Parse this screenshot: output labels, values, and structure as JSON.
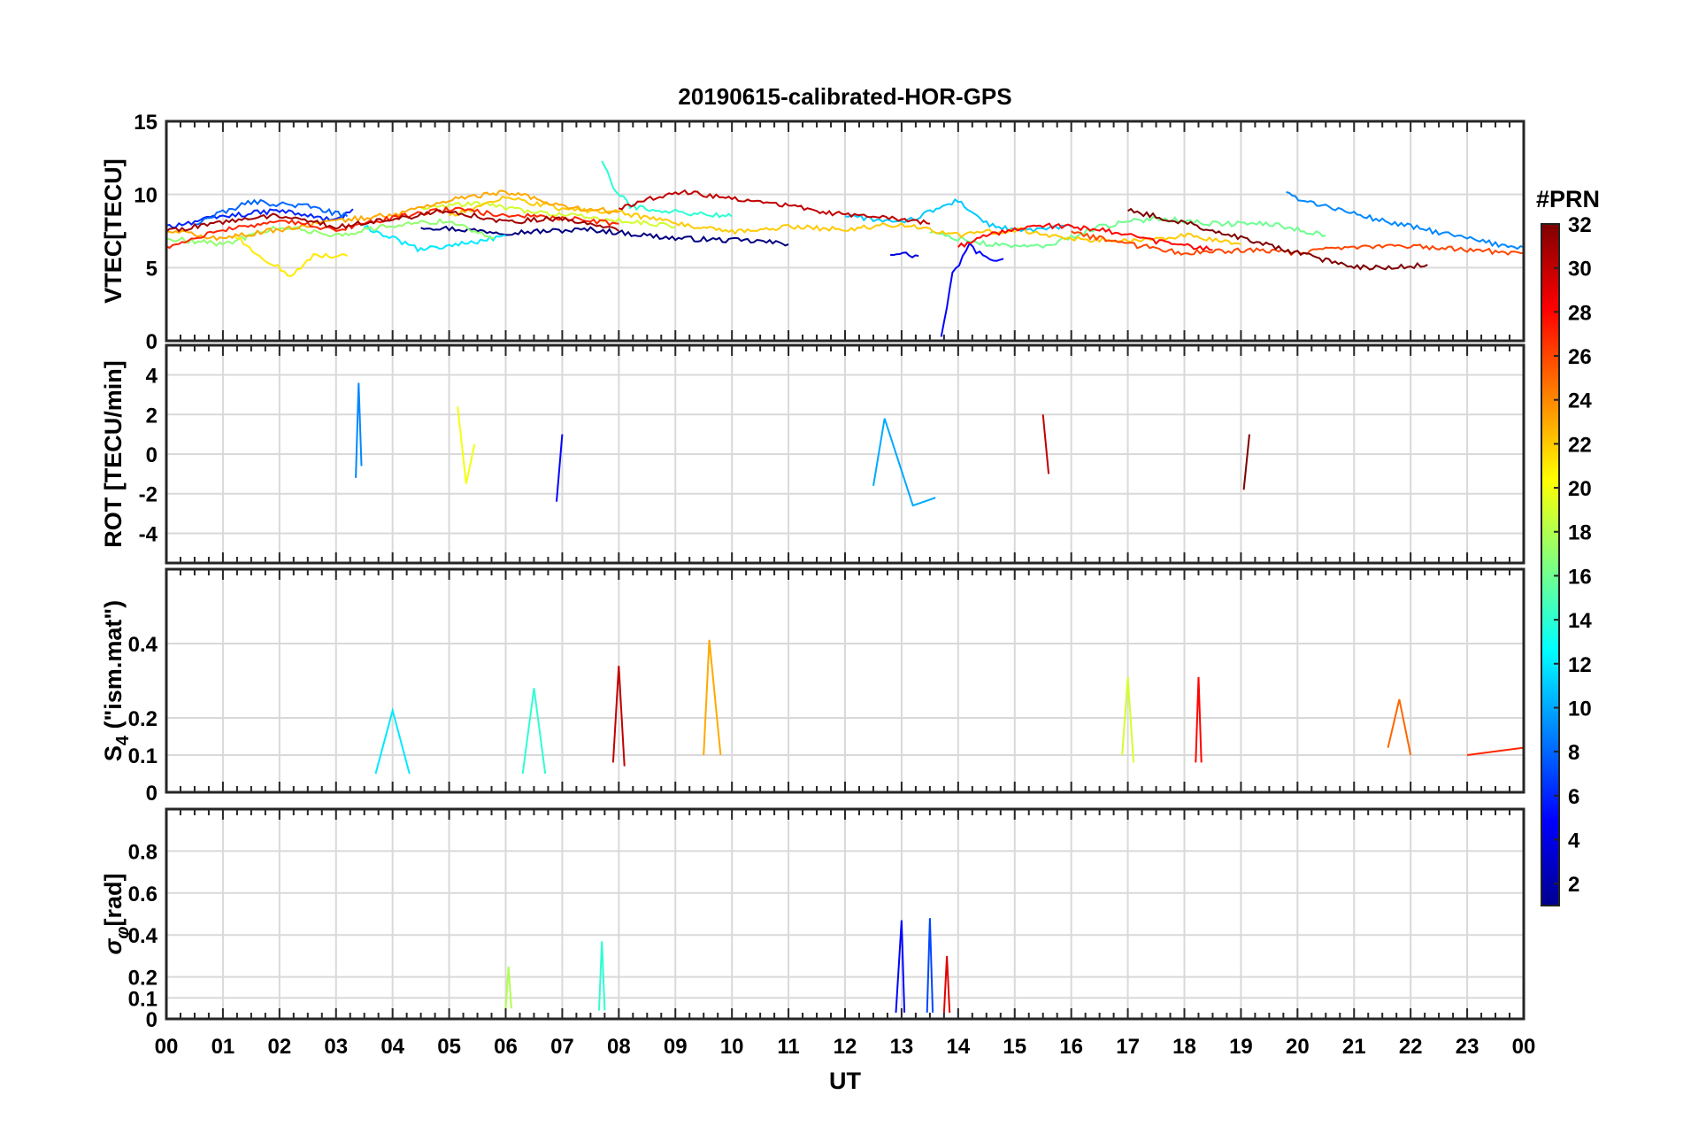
{
  "chart_data": {
    "type": "line",
    "title": "20190615-calibrated-HOR-GPS",
    "xlabel": "UT",
    "x_ticks": [
      "00",
      "01",
      "02",
      "03",
      "04",
      "05",
      "06",
      "07",
      "08",
      "09",
      "10",
      "11",
      "12",
      "13",
      "14",
      "15",
      "16",
      "17",
      "18",
      "19",
      "20",
      "21",
      "22",
      "23",
      "00"
    ],
    "xlim": [
      0,
      24
    ],
    "colorbar": {
      "label": "#PRN",
      "range": [
        1,
        32
      ],
      "ticks": [
        "2",
        "4",
        "6",
        "8",
        "10",
        "12",
        "14",
        "16",
        "18",
        "20",
        "22",
        "24",
        "26",
        "28",
        "30",
        "32"
      ]
    },
    "panels": [
      {
        "name": "vtec",
        "ylabel": "VTEC[TECU]",
        "ylim": [
          0,
          15
        ],
        "yticks": [
          "0",
          "5",
          "10",
          "15"
        ],
        "series": [
          {
            "prn": 1,
            "points": [
              [
                4.5,
                7.8
              ],
              [
                6,
                7.4
              ],
              [
                7.5,
                7.6
              ],
              [
                9,
                7.0
              ],
              [
                10.5,
                6.8
              ],
              [
                11,
                6.6
              ]
            ]
          },
          {
            "prn": 4,
            "points": [
              [
                12.8,
                6.0
              ],
              [
                13.3,
                5.8
              ]
            ]
          },
          {
            "prn": 5,
            "points": [
              [
                13.7,
                0.2
              ],
              [
                13.9,
                4.5
              ],
              [
                14.2,
                6.5
              ],
              [
                14.5,
                5.6
              ],
              [
                14.8,
                5.6
              ]
            ]
          },
          {
            "prn": 6,
            "points": [
              [
                0,
                7.8
              ],
              [
                1,
                8.5
              ],
              [
                2,
                8.9
              ],
              [
                3,
                8.2
              ],
              [
                3.3,
                9.0
              ]
            ]
          },
          {
            "prn": 8,
            "points": [
              [
                0.5,
                8.0
              ],
              [
                1.5,
                9.5
              ],
              [
                2.5,
                9.2
              ],
              [
                3.2,
                8.5
              ]
            ]
          },
          {
            "prn": 9,
            "points": [
              [
                19.8,
                10.0
              ],
              [
                20.5,
                9.2
              ],
              [
                21.5,
                8.2
              ],
              [
                22.5,
                7.4
              ],
              [
                23.5,
                6.6
              ],
              [
                24,
                6.4
              ]
            ]
          },
          {
            "prn": 11,
            "points": [
              [
                12,
                8.6
              ],
              [
                13,
                8.0
              ],
              [
                14,
                9.6
              ],
              [
                14.5,
                8.0
              ],
              [
                15,
                7.5
              ],
              [
                16,
                7.8
              ]
            ]
          },
          {
            "prn": 12,
            "points": [
              [
                3.5,
                7.8
              ],
              [
                4.5,
                6.2
              ],
              [
                5.5,
                6.8
              ],
              [
                6,
                7.2
              ]
            ]
          },
          {
            "prn": 14,
            "points": [
              [
                7.7,
                12.3
              ],
              [
                7.9,
                10.5
              ],
              [
                8.2,
                9.2
              ],
              [
                9,
                8.8
              ],
              [
                10,
                8.5
              ]
            ]
          },
          {
            "prn": 16,
            "points": [
              [
                13.5,
                7.4
              ],
              [
                14.5,
                6.6
              ],
              [
                15.5,
                6.4
              ],
              [
                16.5,
                7.8
              ],
              [
                17.5,
                8.4
              ],
              [
                18.5,
                8.0
              ],
              [
                19.5,
                8.0
              ],
              [
                20.5,
                7.2
              ]
            ]
          },
          {
            "prn": 17,
            "points": [
              [
                0,
                7.0
              ],
              [
                1,
                6.6
              ],
              [
                2,
                7.8
              ],
              [
                3,
                7.2
              ],
              [
                4,
                7.9
              ],
              [
                5,
                8.2
              ],
              [
                5.8,
                7.0
              ]
            ]
          },
          {
            "prn": 19,
            "points": [
              [
                4.5,
                9.0
              ],
              [
                5.5,
                9.4
              ],
              [
                6.5,
                8.8
              ],
              [
                7.5,
                8.4
              ],
              [
                8.5,
                8.0
              ],
              [
                9,
                7.8
              ]
            ]
          },
          {
            "prn": 21,
            "points": [
              [
                1.2,
                7.2
              ],
              [
                1.8,
                5.4
              ],
              [
                2.2,
                4.5
              ],
              [
                2.6,
                5.8
              ],
              [
                3.2,
                5.8
              ]
            ]
          },
          {
            "prn": 22,
            "points": [
              [
                5,
                8.5
              ],
              [
                6,
                9.8
              ],
              [
                7,
                9.0
              ],
              [
                8,
                8.8
              ],
              [
                9,
                8.0
              ],
              [
                10,
                7.4
              ],
              [
                11,
                7.8
              ],
              [
                12,
                7.6
              ],
              [
                13,
                8.0
              ],
              [
                14,
                7.2
              ],
              [
                15,
                7.6
              ],
              [
                16,
                7.0
              ],
              [
                17,
                6.8
              ],
              [
                18,
                7.2
              ],
              [
                19,
                6.6
              ]
            ]
          },
          {
            "prn": 23,
            "points": [
              [
                0,
                7.5
              ],
              [
                1,
                7.0
              ],
              [
                2,
                7.6
              ],
              [
                3,
                8.2
              ],
              [
                4,
                8.6
              ],
              [
                5,
                9.6
              ],
              [
                6,
                10.2
              ],
              [
                7,
                9.2
              ],
              [
                8,
                8.8
              ]
            ]
          },
          {
            "prn": 26,
            "points": [
              [
                16,
                7.4
              ],
              [
                17,
                6.6
              ],
              [
                18,
                6.0
              ],
              [
                19,
                6.2
              ],
              [
                20,
                6.0
              ],
              [
                21,
                6.4
              ],
              [
                22,
                6.5
              ],
              [
                23,
                6.2
              ],
              [
                24,
                6.0
              ]
            ]
          },
          {
            "prn": 27,
            "points": [
              [
                0,
                6.4
              ],
              [
                1,
                7.6
              ],
              [
                2,
                8.2
              ],
              [
                3,
                7.6
              ],
              [
                4,
                8.4
              ],
              [
                5,
                9.0
              ],
              [
                6,
                8.6
              ],
              [
                7,
                8.4
              ],
              [
                8,
                8.0
              ]
            ]
          },
          {
            "prn": 28,
            "points": [
              [
                14,
                6.4
              ],
              [
                14.5,
                7.2
              ],
              [
                15.5,
                7.9
              ],
              [
                16.5,
                7.6
              ],
              [
                17.5,
                6.8
              ],
              [
                18.5,
                6.2
              ]
            ]
          },
          {
            "prn": 30,
            "points": [
              [
                8,
                9.0
              ],
              [
                9,
                10.2
              ],
              [
                10,
                9.8
              ],
              [
                11,
                9.2
              ],
              [
                12,
                8.6
              ],
              [
                13,
                8.3
              ],
              [
                13.5,
                8.0
              ]
            ]
          },
          {
            "prn": 31,
            "points": [
              [
                0,
                7.5
              ],
              [
                1,
                8.1
              ],
              [
                2,
                8.6
              ],
              [
                3,
                7.8
              ],
              [
                4,
                8.3
              ],
              [
                5,
                8.9
              ],
              [
                6,
                8.1
              ],
              [
                7,
                8.4
              ],
              [
                8,
                7.5
              ]
            ]
          },
          {
            "prn": 32,
            "points": [
              [
                17,
                8.9
              ],
              [
                18,
                8.1
              ],
              [
                19,
                7.0
              ],
              [
                20,
                6.0
              ],
              [
                21,
                5.0
              ],
              [
                22,
                5.1
              ],
              [
                22.3,
                5.2
              ]
            ]
          }
        ]
      },
      {
        "name": "rot",
        "ylabel": "ROT [TECU/min]",
        "ylim": [
          -5.5,
          5.5
        ],
        "yticks": [
          "-4",
          "-2",
          "0",
          "2",
          "4"
        ],
        "series": [
          {
            "prn": 9,
            "points": [
              [
                3.35,
                -1.2
              ],
              [
                3.4,
                3.6
              ],
              [
                3.45,
                -0.6
              ]
            ]
          },
          {
            "prn": 10,
            "points": [
              [
                12.5,
                -1.6
              ],
              [
                12.7,
                1.8
              ],
              [
                13.2,
                -2.6
              ],
              [
                13.6,
                -2.2
              ]
            ]
          },
          {
            "prn": 20,
            "points": [
              [
                5.15,
                2.4
              ],
              [
                5.3,
                -1.5
              ],
              [
                5.45,
                0.5
              ]
            ]
          },
          {
            "prn": 5,
            "points": [
              [
                6.9,
                -2.4
              ],
              [
                7.0,
                1.0
              ]
            ]
          },
          {
            "prn": 30,
            "points": [
              [
                15.5,
                2.0
              ],
              [
                15.6,
                -1.0
              ]
            ]
          },
          {
            "prn": 32,
            "points": [
              [
                19.05,
                -1.8
              ],
              [
                19.15,
                1.0
              ]
            ]
          }
        ]
      },
      {
        "name": "s4",
        "ylabel": "S4 (\"ism.mat\")",
        "ylabel_main": "S",
        "ylabel_sub": "4",
        "ylabel_rest": " (\"ism.mat\")",
        "ylim": [
          0,
          0.6
        ],
        "yticks": [
          "0",
          "0.1",
          "0.2",
          "0.4"
        ],
        "series": [
          {
            "prn": 23,
            "points": [
              [
                9.5,
                0.1
              ],
              [
                9.6,
                0.41
              ],
              [
                9.8,
                0.1
              ]
            ]
          },
          {
            "prn": 30,
            "points": [
              [
                7.9,
                0.08
              ],
              [
                8.0,
                0.34
              ],
              [
                8.1,
                0.07
              ]
            ]
          },
          {
            "prn": 12,
            "points": [
              [
                3.7,
                0.05
              ],
              [
                4.0,
                0.22
              ],
              [
                4.3,
                0.05
              ]
            ]
          },
          {
            "prn": 14,
            "points": [
              [
                6.3,
                0.05
              ],
              [
                6.5,
                0.28
              ],
              [
                6.7,
                0.05
              ]
            ]
          },
          {
            "prn": 28,
            "points": [
              [
                18.2,
                0.08
              ],
              [
                18.25,
                0.31
              ],
              [
                18.3,
                0.08
              ]
            ]
          },
          {
            "prn": 25,
            "points": [
              [
                21.6,
                0.12
              ],
              [
                21.8,
                0.25
              ],
              [
                22,
                0.1
              ]
            ]
          },
          {
            "prn": 19,
            "points": [
              [
                16.9,
                0.1
              ],
              [
                17.0,
                0.31
              ],
              [
                17.1,
                0.08
              ]
            ]
          },
          {
            "prn": 27,
            "points": [
              [
                23,
                0.1
              ],
              [
                24,
                0.12
              ]
            ]
          }
        ]
      },
      {
        "name": "sigma",
        "ylabel": "σφ[rad]",
        "ylabel_main": "σ",
        "ylabel_sub": "φ",
        "ylabel_rest": "[rad]",
        "ylim": [
          0,
          1.0
        ],
        "yticks": [
          "0",
          "0.1",
          "0.2",
          "0.4",
          "0.6",
          "0.8"
        ],
        "series": [
          {
            "prn": 5,
            "points": [
              [
                12.9,
                0.03
              ],
              [
                13.0,
                0.47
              ],
              [
                13.05,
                0.03
              ]
            ]
          },
          {
            "prn": 7,
            "points": [
              [
                13.45,
                0.03
              ],
              [
                13.5,
                0.48
              ],
              [
                13.55,
                0.03
              ]
            ]
          },
          {
            "prn": 29,
            "points": [
              [
                13.75,
                0.03
              ],
              [
                13.8,
                0.3
              ],
              [
                13.85,
                0.03
              ]
            ]
          },
          {
            "prn": 14,
            "points": [
              [
                7.65,
                0.04
              ],
              [
                7.7,
                0.37
              ],
              [
                7.75,
                0.04
              ]
            ]
          },
          {
            "prn": 18,
            "points": [
              [
                6.0,
                0.05
              ],
              [
                6.05,
                0.25
              ],
              [
                6.1,
                0.05
              ]
            ]
          }
        ]
      }
    ]
  }
}
